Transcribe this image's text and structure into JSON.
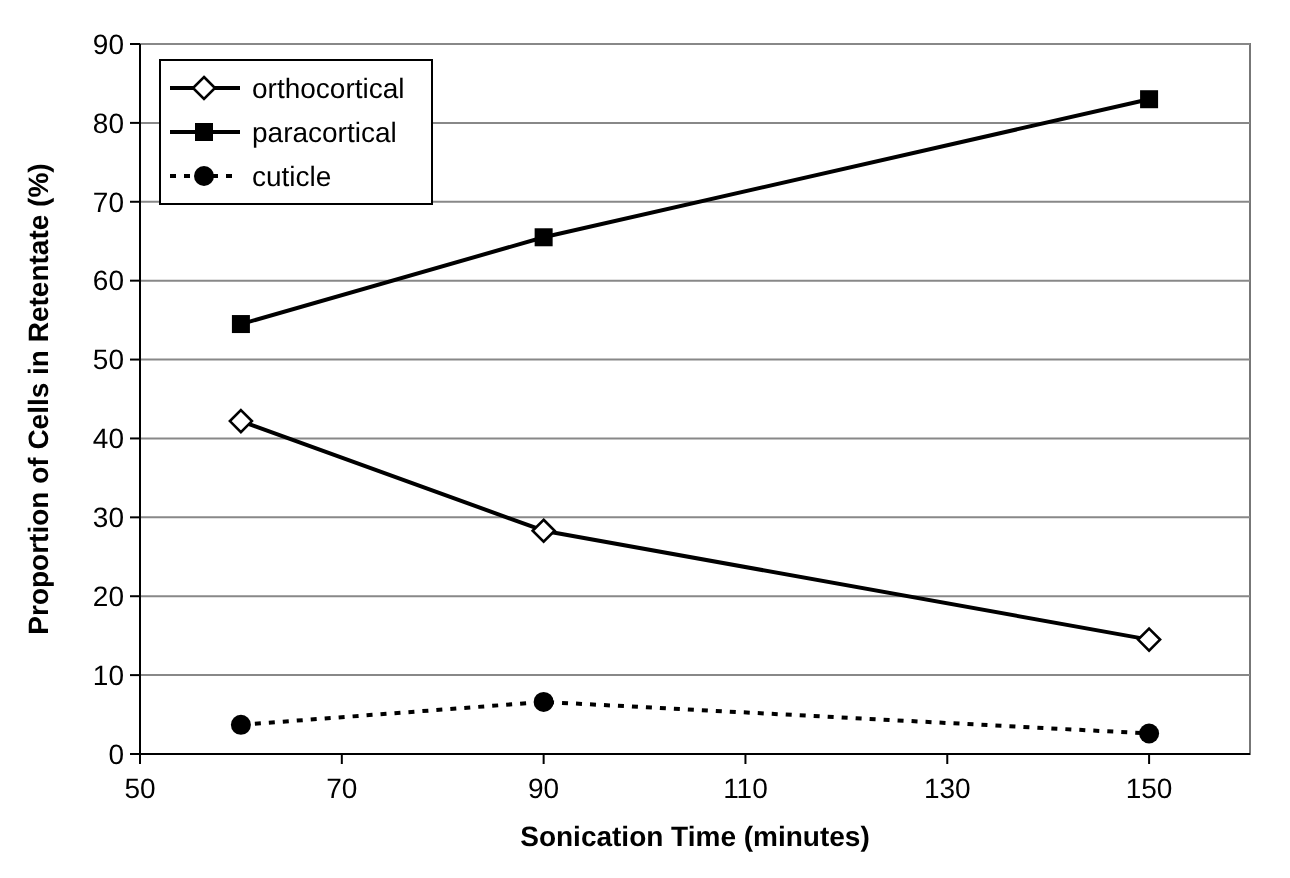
{
  "chart_data": {
    "type": "line",
    "xlabel": "Sonication Time (minutes)",
    "ylabel": "Proportion of Cells in Retentate (%)",
    "x": [
      60,
      90,
      150
    ],
    "xlim": [
      50,
      160
    ],
    "xticks": [
      50,
      70,
      90,
      110,
      130,
      150
    ],
    "ylim": [
      0,
      90
    ],
    "yticks": [
      0,
      10,
      20,
      30,
      40,
      50,
      60,
      70,
      80,
      90
    ],
    "grid": "y",
    "legend": "top left",
    "series": [
      {
        "name": "orthocortical",
        "color": "#000000",
        "values": [
          42.2,
          28.3,
          14.5
        ],
        "marker": "diamond",
        "line_style": "solid"
      },
      {
        "name": "paracortical",
        "color": "#000000",
        "values": [
          54.5,
          65.5,
          83
        ],
        "marker": "square",
        "line_style": "solid"
      },
      {
        "name": "cuticle",
        "color": "#000000",
        "values": [
          3.7,
          6.6,
          2.6
        ],
        "marker": "circle",
        "line_style": "dotted"
      }
    ]
  }
}
